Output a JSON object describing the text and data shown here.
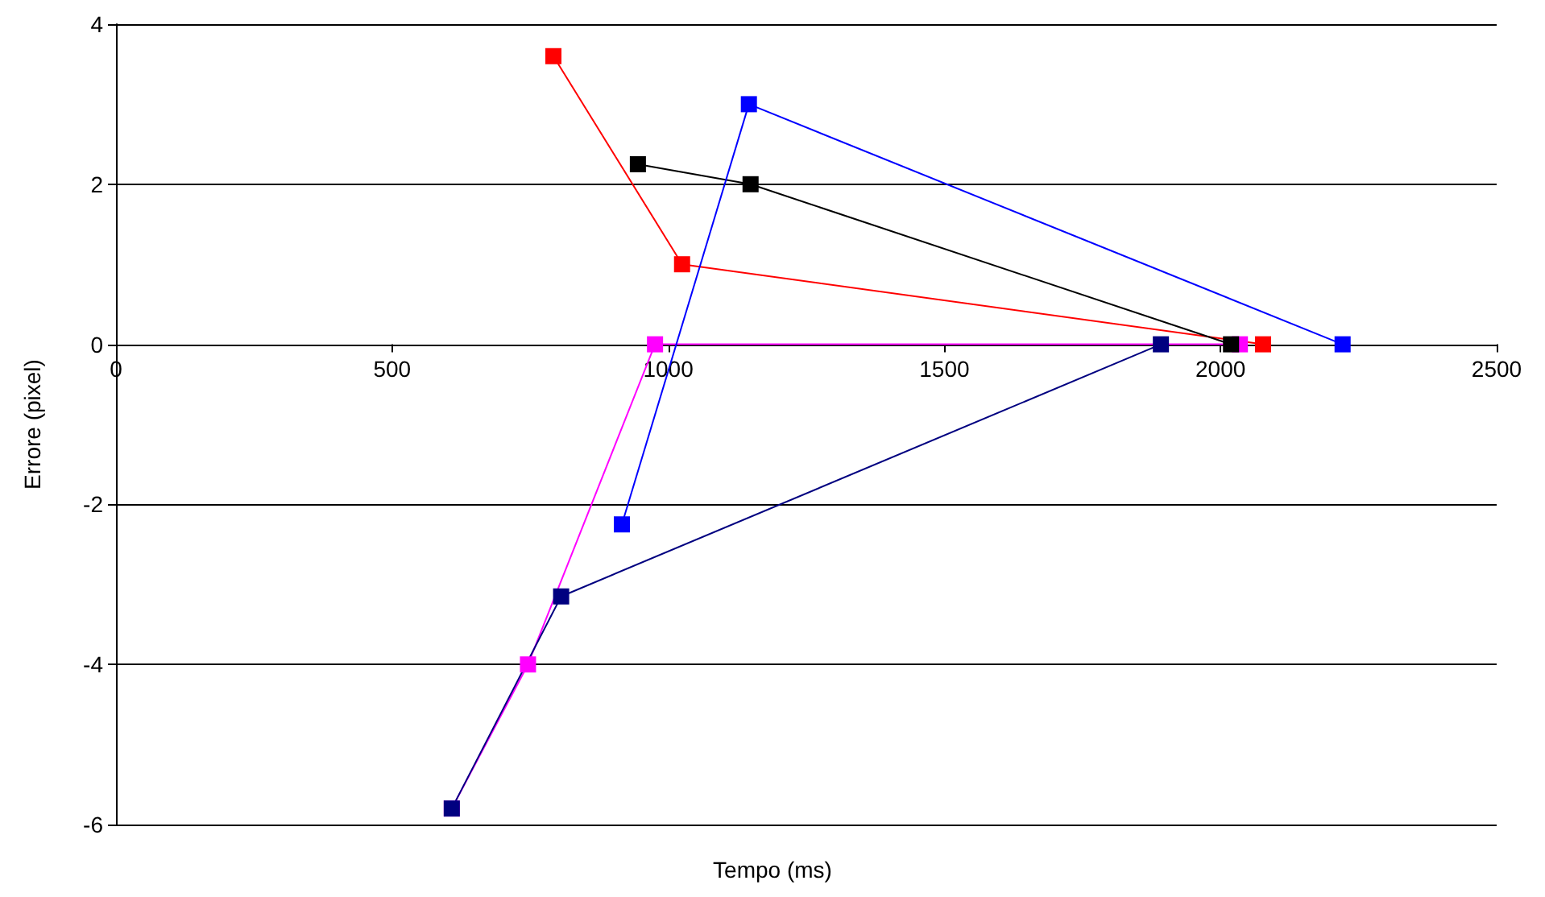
{
  "chart_data": {
    "type": "line",
    "xlabel": "Tempo (ms)",
    "ylabel": "Errore (pixel)",
    "xlim": [
      0,
      2500
    ],
    "xticks": [
      0,
      500,
      1000,
      1500,
      2000,
      2500
    ],
    "ylim": [
      -6,
      4
    ],
    "yticks": [
      -6,
      -4,
      -2,
      0,
      2,
      4
    ],
    "grid": "y",
    "marker": "square",
    "series": [
      {
        "color": "#ff0000",
        "x": [
          792,
          1025,
          2077
        ],
        "values": [
          3.6,
          1.0,
          0
        ]
      },
      {
        "color": "#ff00ff",
        "x": [
          608,
          746,
          976,
          2035
        ],
        "values": [
          -5.8,
          -4,
          0,
          0
        ]
      },
      {
        "color": "#000000",
        "x": [
          945,
          1149,
          2019
        ],
        "values": [
          2.25,
          2.0,
          0
        ]
      },
      {
        "color": "#0000ff",
        "x": [
          916,
          1146,
          2221
        ],
        "values": [
          -2.25,
          3.0,
          0
        ]
      },
      {
        "color": "#000080",
        "x": [
          608,
          806,
          1892
        ],
        "values": [
          -5.8,
          -3.15,
          0
        ]
      }
    ]
  }
}
